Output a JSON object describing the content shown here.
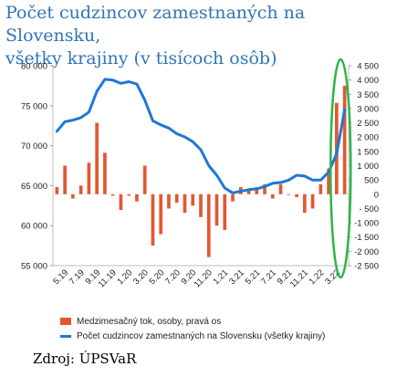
{
  "title_line1": "Počet cudzincov zamestnaných na Slovensku,",
  "title_line2": "všetky krajiny (v tisícoch osôb)",
  "source": "Zdroj: ÚPSVaR",
  "colors": {
    "bar": "#e4572e",
    "line": "#1f77d4",
    "highlight": "#2db34a",
    "title": "#2e75b6"
  },
  "chart_data": {
    "type": "bar+line",
    "x_tick_labels": [
      "5.19",
      "7.19",
      "9.19",
      "11.19",
      "1.20",
      "3.20",
      "5.20",
      "7.20",
      "9.20",
      "11.20",
      "1.21",
      "3.21",
      "5.21",
      "7.21",
      "9.21",
      "11.21",
      "1.22",
      "3.22"
    ],
    "months": [
      "4.19",
      "5.19",
      "6.19",
      "7.19",
      "8.19",
      "9.19",
      "10.19",
      "11.19",
      "12.19",
      "1.20",
      "2.20",
      "3.20",
      "4.20",
      "5.20",
      "6.20",
      "7.20",
      "8.20",
      "9.20",
      "10.20",
      "11.20",
      "12.20",
      "1.21",
      "2.21",
      "3.21",
      "4.21",
      "5.21",
      "6.21",
      "7.21",
      "8.21",
      "9.21",
      "10.21",
      "11.21",
      "12.21",
      "1.22",
      "2.22",
      "3.22",
      "4.22"
    ],
    "left_axis": {
      "ylim": [
        55000,
        80000
      ],
      "ticks": [
        "55 000",
        "60 000",
        "65 000",
        "70 000",
        "75 000",
        "80 000"
      ]
    },
    "right_axis": {
      "ylim": [
        -2500,
        4500
      ],
      "ticks": [
        "-2 500",
        "-2 000",
        "-1 500",
        "-1 000",
        "- 500",
        "0",
        "500",
        "1 000",
        "1 500",
        "2 000",
        "2 500",
        "3 000",
        "3 500",
        "4 000",
        "4 500"
      ]
    },
    "series": [
      {
        "name": "Medzimesačný tok, osoby, pravá os",
        "type": "bar",
        "axis": "right",
        "values": [
          250,
          1000,
          -150,
          300,
          1100,
          2500,
          1450,
          -50,
          -550,
          -50,
          -250,
          1000,
          -1800,
          -1400,
          -500,
          -300,
          -650,
          -400,
          -800,
          -2200,
          -1100,
          -1250,
          -250,
          250,
          150,
          250,
          350,
          -150,
          350,
          0,
          -100,
          -650,
          -500,
          350,
          900,
          3200,
          3800
        ]
      },
      {
        "name": "Počet cudzincov zamestnaných na Slovensku (všetky krajiny)",
        "type": "line",
        "axis": "left",
        "values": [
          71800,
          73000,
          73200,
          73500,
          74200,
          76800,
          78300,
          78200,
          77800,
          78000,
          77700,
          75700,
          73100,
          72600,
          72200,
          71500,
          71100,
          70500,
          69500,
          67500,
          66300,
          64700,
          64100,
          64300,
          64500,
          64600,
          64900,
          65300,
          65400,
          65700,
          66300,
          66200,
          65700,
          65700,
          66700,
          69000,
          74500
        ]
      }
    ]
  }
}
